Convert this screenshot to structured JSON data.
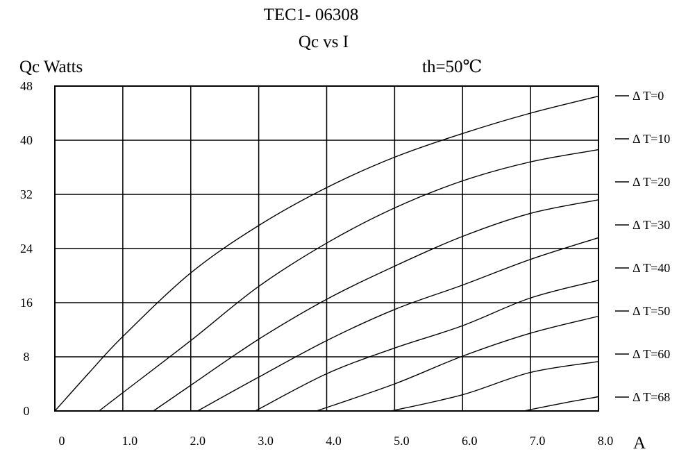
{
  "chart_data": {
    "type": "line",
    "title": "TEC1- 06308",
    "subtitle": "Qc vs I",
    "ylabel": "Qc Watts",
    "xlabel": "A",
    "annotation": "th=50℃",
    "xlim": [
      0,
      8
    ],
    "ylim": [
      0,
      48
    ],
    "x_ticks": [
      "0",
      "1.0",
      "2.0",
      "3.0",
      "4.0",
      "5.0",
      "6.0",
      "7.0",
      "8.0"
    ],
    "y_ticks": [
      "0",
      "8",
      "16",
      "24",
      "32",
      "40",
      "48"
    ],
    "grid": true,
    "legend_position": "right",
    "series": [
      {
        "name": "Δ T=0",
        "x": [
          0,
          0.5,
          1.0,
          2.0,
          3.0,
          4.0,
          5.0,
          6.0,
          7.0,
          8.0
        ],
        "y": [
          0,
          5.6,
          11,
          20.4,
          27.4,
          33,
          37.5,
          41,
          44,
          46.5
        ]
      },
      {
        "name": "Δ T=10",
        "x": [
          0.65,
          1.0,
          2.0,
          3.0,
          4.0,
          5.0,
          6.0,
          7.0,
          8.0
        ],
        "y": [
          0,
          2.7,
          10.4,
          18.4,
          24.8,
          30,
          34,
          36.8,
          38.6
        ]
      },
      {
        "name": "Δ T=20",
        "x": [
          1.45,
          2.0,
          3.0,
          4.0,
          5.0,
          6.0,
          7.0,
          8.0
        ],
        "y": [
          0,
          3.8,
          10.6,
          16.5,
          21.4,
          25.8,
          29.2,
          31.2
        ]
      },
      {
        "name": "Δ T=30",
        "x": [
          2.1,
          3.0,
          4.0,
          5.0,
          6.0,
          7.0,
          8.0
        ],
        "y": [
          0,
          5,
          10.4,
          15,
          18.6,
          22.4,
          25.6
        ]
      },
      {
        "name": "Δ T=40",
        "x": [
          2.95,
          4.0,
          5.0,
          6.0,
          7.0,
          8.0
        ],
        "y": [
          0,
          5.5,
          9.3,
          12.6,
          16.7,
          19.3
        ]
      },
      {
        "name": "Δ T=50",
        "x": [
          3.85,
          5.0,
          6.0,
          7.0,
          8.0
        ],
        "y": [
          0,
          4,
          8.1,
          11.5,
          14
        ]
      },
      {
        "name": "Δ T=60",
        "x": [
          4.95,
          6.0,
          7.0,
          8.0
        ],
        "y": [
          0,
          2.4,
          5.7,
          7.3
        ]
      },
      {
        "name": "Δ T=68",
        "x": [
          6.9,
          7.5,
          8.0
        ],
        "y": [
          0,
          1.2,
          2.1
        ]
      }
    ]
  }
}
